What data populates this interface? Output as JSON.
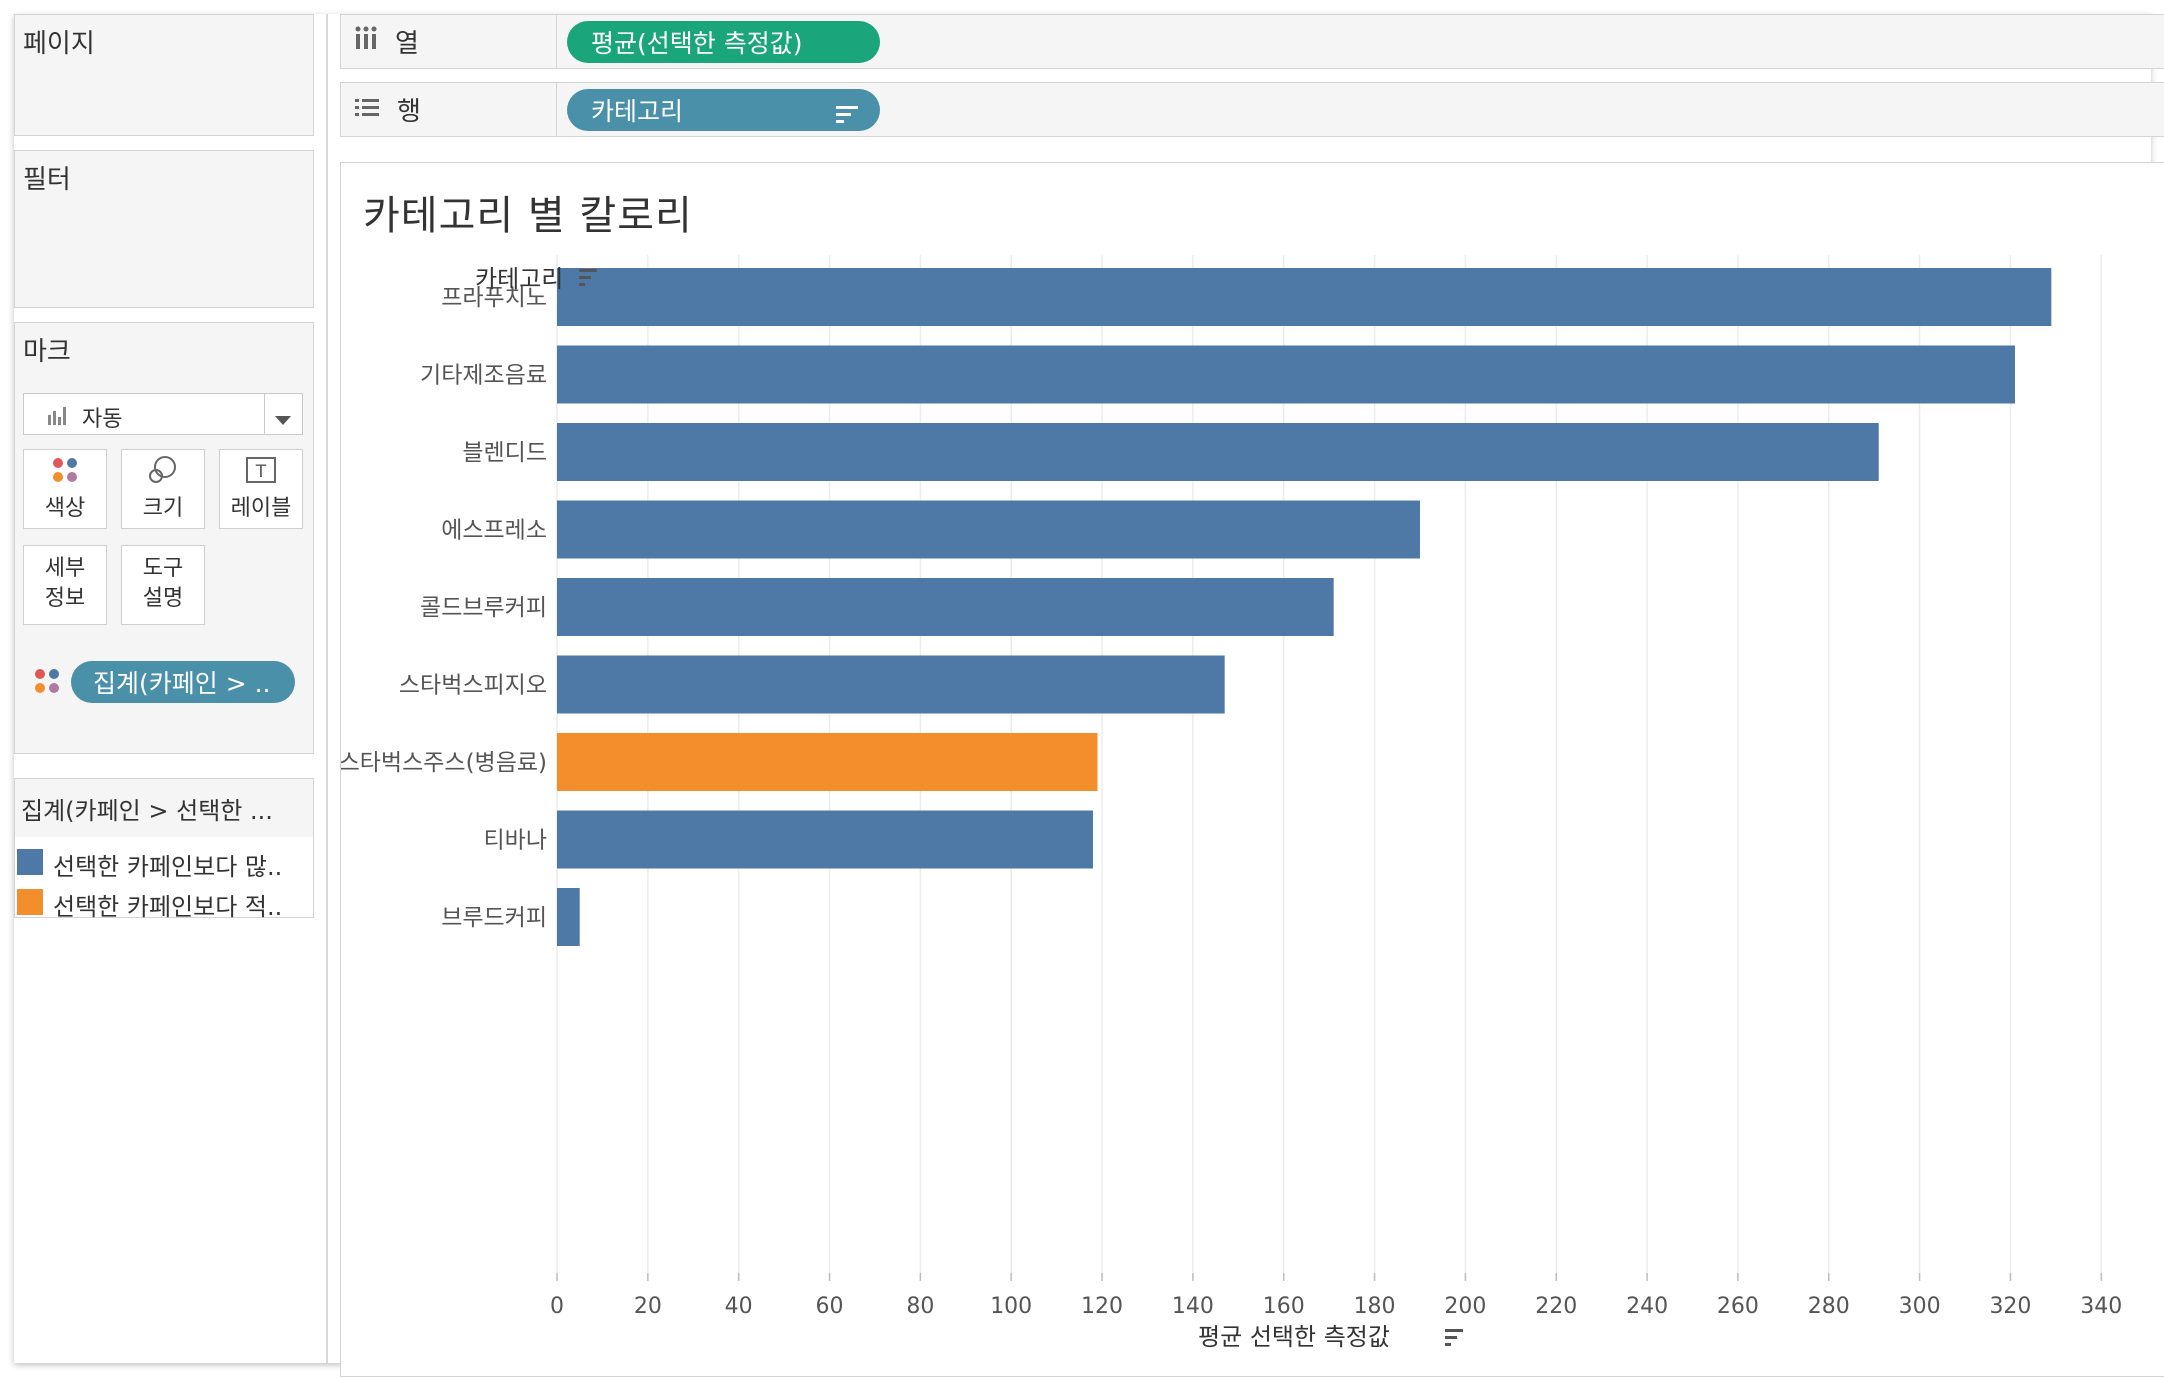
{
  "sidebar": {
    "pages_title": "페이지",
    "filters_title": "필터",
    "marks_title": "마크",
    "mark_type": "자동",
    "mark_cards": [
      {
        "label": "색상",
        "icon": "color-dots-icon"
      },
      {
        "label": "크기",
        "icon": "size-icon"
      },
      {
        "label": "레이블",
        "icon": "label-text-icon"
      },
      {
        "label": "세부\n정보",
        "icon": "none"
      },
      {
        "label": "도구\n설명",
        "icon": "none"
      }
    ],
    "color_pill": "집계(카페인 > ..",
    "legend": {
      "title": "집계(카페인 > 선택한 ...",
      "items": [
        {
          "label": "선택한 카페인보다 많..",
          "color": "#4e79a7"
        },
        {
          "label": "선택한 카페인보다 적..",
          "color": "#f28e2b"
        }
      ]
    }
  },
  "shelves": {
    "columns": {
      "label": "열",
      "pill": "평균(선택한 측정값)"
    },
    "rows": {
      "label": "행",
      "pill": "카테고리"
    }
  },
  "chart_data": {
    "type": "bar",
    "orientation": "horizontal",
    "title": "카테고리 별 칼로리",
    "ylabel": "카테고리",
    "xlabel": "평균 선택한 측정값",
    "categories": [
      "프라푸치노",
      "기타제조음료",
      "블렌디드",
      "에스프레소",
      "콜드브루커피",
      "스타벅스피지오",
      "스타벅스주스(병음료)",
      "티바나",
      "브루드커피"
    ],
    "values": [
      329,
      321,
      291,
      190,
      171,
      147,
      119,
      118,
      5
    ],
    "color_group": [
      "more",
      "more",
      "more",
      "more",
      "more",
      "more",
      "less",
      "more",
      "more"
    ],
    "colors": {
      "more": "#4e79a7",
      "less": "#f28e2b"
    },
    "xlim": [
      0,
      345
    ],
    "xticks": [
      0,
      20,
      40,
      60,
      80,
      100,
      120,
      140,
      160,
      180,
      200,
      220,
      240,
      260,
      280,
      300,
      320,
      340
    ],
    "grid": "vertical"
  }
}
